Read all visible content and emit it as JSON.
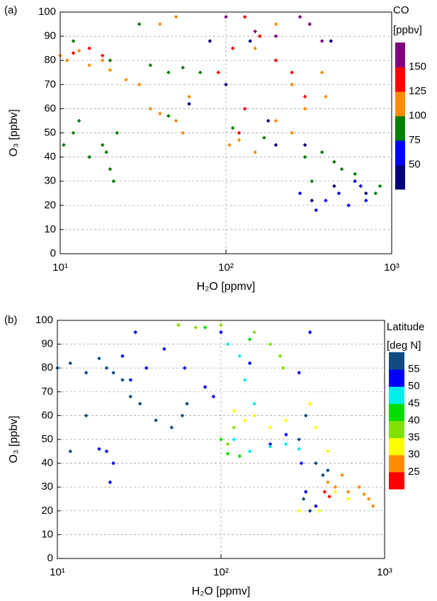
{
  "chart_data": [
    {
      "type": "scatter",
      "panel_label": "(a)",
      "x_label": "H₂O [ppmv]",
      "y_label": "O₃ [ppbv]",
      "x_scale": "log",
      "xlim": [
        10,
        1000
      ],
      "xticks": [
        {
          "value": 10,
          "label": "10¹"
        },
        {
          "value": 100,
          "label": "10²"
        },
        {
          "value": 1000,
          "label": "10³"
        }
      ],
      "ylim": [
        0,
        100
      ],
      "yticks": [
        0,
        10,
        20,
        30,
        40,
        50,
        60,
        70,
        80,
        90,
        100
      ],
      "grid": true,
      "x": [
        10.5,
        12,
        13,
        15,
        18,
        20,
        21,
        22,
        19,
        10,
        11,
        13,
        15,
        18,
        20,
        25,
        30,
        35,
        40,
        50,
        55,
        60,
        12,
        15,
        18,
        12,
        20,
        30,
        35,
        45,
        55,
        70,
        45,
        60,
        100,
        150,
        200,
        380,
        320,
        280,
        90,
        110,
        130,
        160,
        200,
        250,
        300,
        130,
        120,
        40,
        50,
        105,
        120,
        150,
        200,
        250,
        300,
        400,
        380,
        200,
        150,
        250,
        80,
        100,
        140,
        180,
        200,
        300,
        430,
        330,
        450,
        700,
        350,
        400,
        480,
        550,
        600,
        700,
        650,
        280,
        300,
        450,
        500,
        600,
        800,
        850,
        330,
        380,
        110,
        170
      ],
      "y": [
        45,
        50,
        55,
        40,
        45,
        35,
        30,
        50,
        42,
        82,
        80,
        84,
        78,
        80,
        76,
        72,
        70,
        60,
        58,
        55,
        50,
        65,
        83,
        85,
        82,
        88,
        80,
        95,
        78,
        75,
        77,
        75,
        57,
        62,
        98,
        92,
        90,
        88,
        95,
        98,
        75,
        85,
        60,
        90,
        80,
        75,
        65,
        98,
        50,
        95,
        98,
        45,
        47,
        42,
        55,
        50,
        60,
        65,
        75,
        95,
        85,
        70,
        88,
        70,
        88,
        55,
        45,
        45,
        88,
        22,
        28,
        25,
        18,
        22,
        25,
        20,
        30,
        22,
        28,
        25,
        40,
        38,
        35,
        33,
        25,
        28,
        30,
        42,
        52,
        48
      ],
      "c": [
        85,
        85,
        85,
        85,
        85,
        85,
        85,
        85,
        85,
        110,
        110,
        110,
        110,
        110,
        110,
        110,
        110,
        110,
        110,
        110,
        110,
        110,
        135,
        135,
        135,
        85,
        85,
        85,
        85,
        85,
        85,
        85,
        85,
        45,
        160,
        160,
        160,
        160,
        160,
        160,
        135,
        135,
        135,
        135,
        135,
        135,
        135,
        135,
        135,
        110,
        110,
        110,
        110,
        110,
        110,
        110,
        110,
        110,
        110,
        110,
        110,
        110,
        45,
        45,
        45,
        45,
        45,
        45,
        45,
        45,
        45,
        45,
        65,
        65,
        65,
        65,
        65,
        65,
        65,
        65,
        85,
        85,
        85,
        85,
        85,
        85,
        85,
        85,
        85,
        85
      ],
      "colorbar": {
        "title": [
          "CO",
          "[ppbv]"
        ],
        "lim": [
          25,
          175
        ],
        "ticks": [
          50,
          75,
          100,
          125,
          150
        ],
        "colors": [
          "#00007f",
          "#0000ff",
          "#007f00",
          "#ff8c00",
          "#ff0000",
          "#800080"
        ]
      }
    },
    {
      "type": "scatter",
      "panel_label": "(b)",
      "x_label": "H₂O [ppmv]",
      "y_label": "O₃ [ppbv]",
      "x_scale": "log",
      "xlim": [
        10,
        1000
      ],
      "xticks": [
        {
          "value": 10,
          "label": "10¹"
        },
        {
          "value": 100,
          "label": "10²"
        },
        {
          "value": 1000,
          "label": "10³"
        }
      ],
      "ylim": [
        0,
        100
      ],
      "yticks": [
        0,
        10,
        20,
        30,
        40,
        50,
        60,
        70,
        80,
        90,
        100
      ],
      "grid": true,
      "x": [
        10,
        12,
        15,
        18,
        20,
        22,
        25,
        28,
        32,
        40,
        50,
        58,
        62,
        12,
        15,
        300,
        330,
        380,
        450,
        420,
        320,
        350,
        20,
        22,
        21,
        18,
        25,
        30,
        35,
        28,
        45,
        60,
        80,
        90,
        100,
        150,
        200,
        250,
        300,
        350,
        310,
        330,
        380,
        110,
        130,
        140,
        160,
        120,
        150,
        200,
        250,
        300,
        100,
        110,
        130,
        150,
        80,
        55,
        70,
        100,
        160,
        200,
        230,
        240,
        110,
        120,
        120,
        140,
        160,
        200,
        250,
        350,
        300,
        400,
        500,
        450,
        600,
        380,
        450,
        500,
        600,
        700,
        800,
        850,
        750,
        550,
        430,
        460
      ],
      "y": [
        80,
        82,
        78,
        84,
        80,
        78,
        75,
        68,
        65,
        58,
        55,
        60,
        65,
        45,
        60,
        50,
        60,
        40,
        37,
        35,
        25,
        20,
        45,
        40,
        32,
        46,
        85,
        95,
        80,
        75,
        88,
        80,
        72,
        68,
        95,
        82,
        48,
        52,
        78,
        95,
        40,
        28,
        22,
        90,
        85,
        75,
        65,
        50,
        45,
        47,
        48,
        46,
        50,
        44,
        43,
        92,
        97,
        98,
        97,
        98,
        95,
        90,
        85,
        80,
        48,
        55,
        62,
        58,
        60,
        55,
        58,
        65,
        20,
        20,
        28,
        45,
        25,
        55,
        32,
        30,
        28,
        30,
        25,
        22,
        27,
        35,
        28,
        26
      ],
      "c": [
        57,
        57,
        57,
        57,
        57,
        57,
        57,
        57,
        57,
        57,
        57,
        57,
        57,
        57,
        57,
        57,
        57,
        57,
        57,
        57,
        57,
        57,
        52,
        52,
        52,
        52,
        52,
        52,
        52,
        52,
        52,
        52,
        52,
        52,
        52,
        52,
        52,
        52,
        52,
        52,
        52,
        52,
        52,
        47,
        47,
        47,
        47,
        47,
        47,
        47,
        47,
        47,
        42,
        42,
        42,
        42,
        42,
        37,
        37,
        37,
        37,
        37,
        37,
        37,
        37,
        37,
        32,
        32,
        32,
        32,
        32,
        32,
        32,
        32,
        32,
        32,
        32,
        32,
        27,
        27,
        27,
        27,
        27,
        27,
        27,
        27,
        22,
        22
      ],
      "colorbar": {
        "title": [
          "Latitude",
          "[deg N]"
        ],
        "lim": [
          20,
          60
        ],
        "ticks": [
          25,
          30,
          35,
          40,
          45,
          50,
          55
        ],
        "colors": [
          "#ff0000",
          "#ff8c00",
          "#ffff00",
          "#80e000",
          "#00dd00",
          "#00eeee",
          "#0000ff",
          "#0f4c81"
        ]
      }
    }
  ]
}
